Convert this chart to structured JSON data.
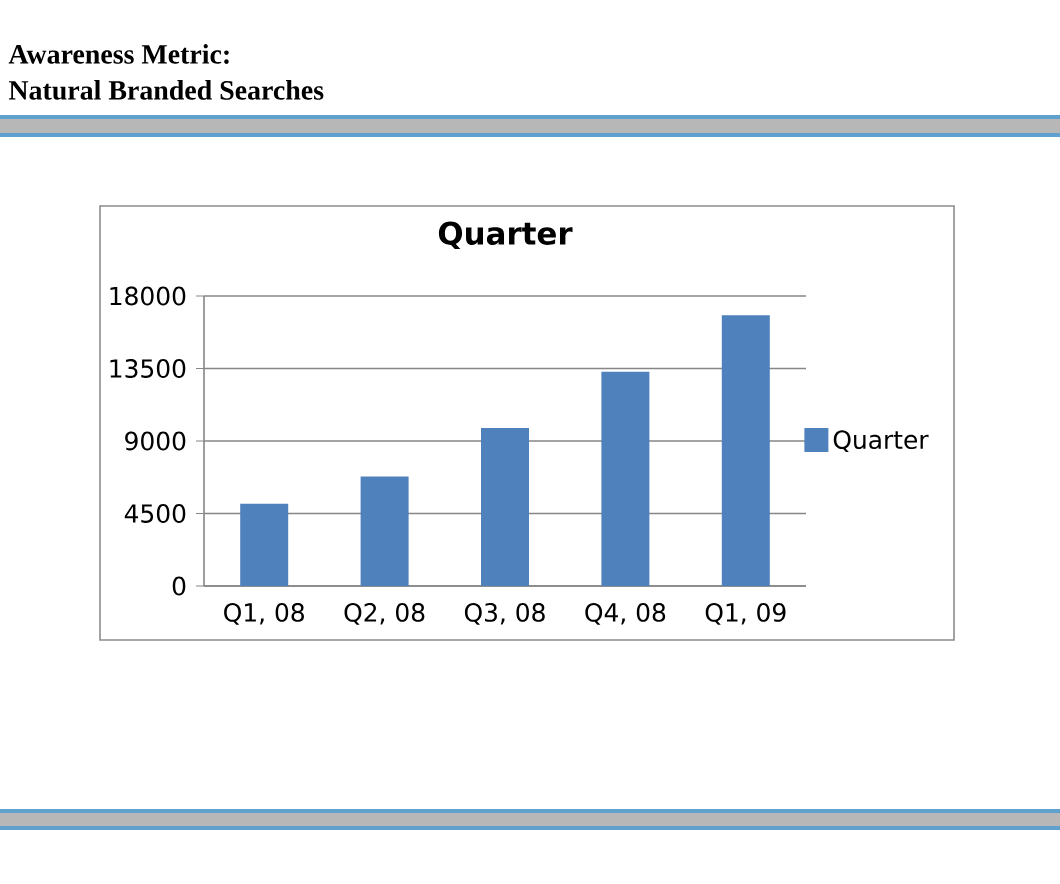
{
  "chart_data": {
    "type": "bar",
    "title": "Quarter",
    "categories": [
      "Q1, 08",
      "Q2, 08",
      "Q3, 08",
      "Q4, 08",
      "Q1, 09"
    ],
    "series": [
      {
        "name": "Quarter",
        "color": "#4f81bd",
        "values": [
          5100,
          6800,
          9800,
          13300,
          16800
        ]
      }
    ],
    "ylim": [
      0,
      18000
    ],
    "yticks": [
      0,
      4500,
      9000,
      13500,
      18000
    ],
    "grid": "y",
    "legend": "right",
    "annotations": [
      "Awareness Metric:",
      "Natural Branded Searches"
    ]
  }
}
